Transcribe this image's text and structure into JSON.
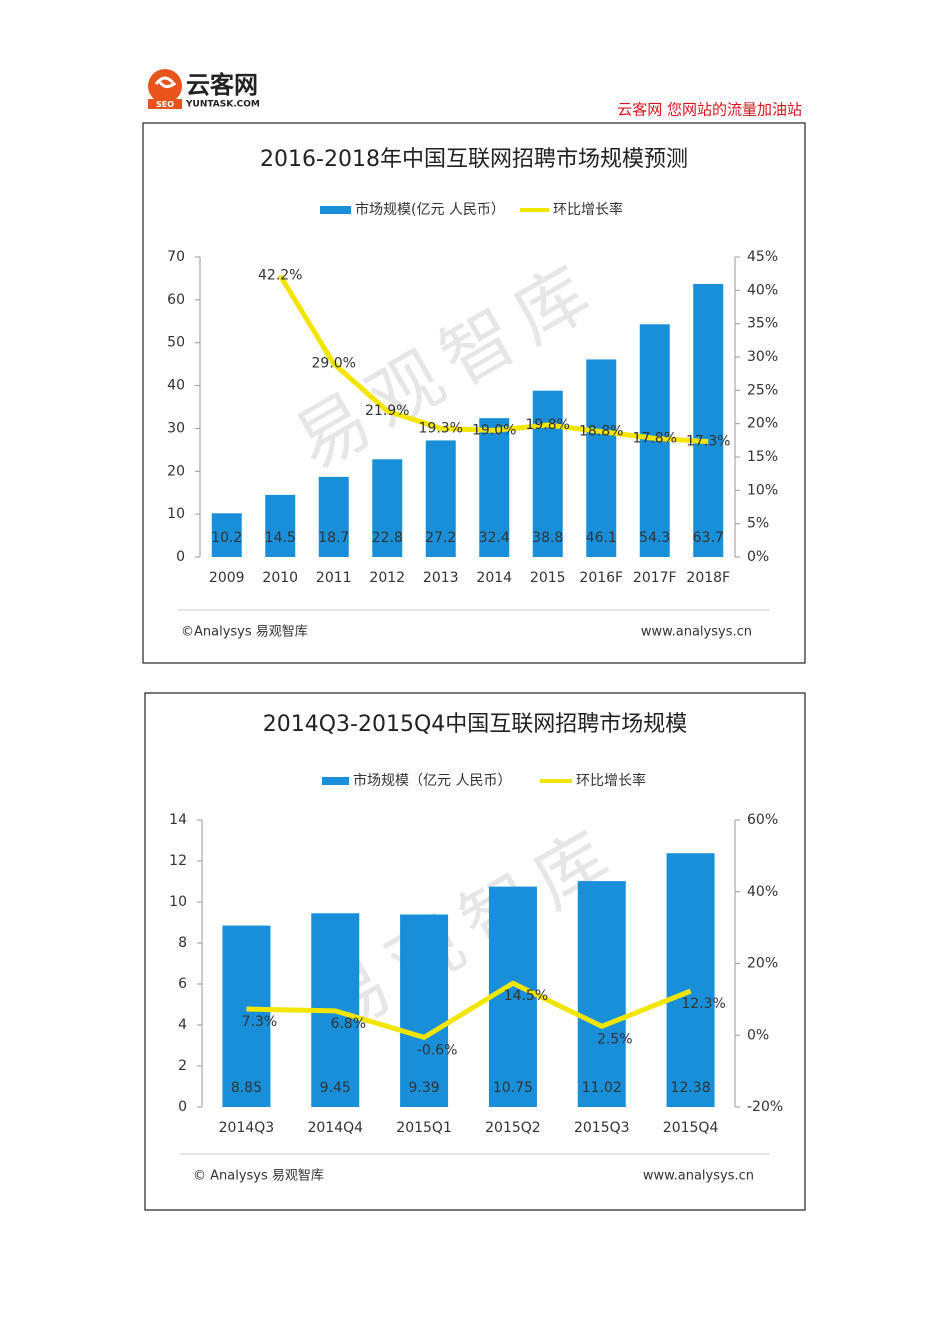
{
  "header": {
    "logo_name": "云客网",
    "logo_badge": "SEO",
    "logo_domain": "YUNTASK.COM",
    "slogan": "云客网  您网站的流量加油站"
  },
  "chart_data": [
    {
      "type": "bar",
      "title": "2016-2018年中国互联网招聘市场规模预测",
      "categories": [
        "2009",
        "2010",
        "2011",
        "2012",
        "2013",
        "2014",
        "2015",
        "2016F",
        "2017F",
        "2018F"
      ],
      "series": [
        {
          "name": "市场规模(亿元 人民币）",
          "type": "bar",
          "color": "#1a8fd9",
          "values": [
            10.2,
            14.5,
            18.7,
            22.8,
            27.2,
            32.4,
            38.8,
            46.1,
            54.3,
            63.7
          ]
        },
        {
          "name": "环比增长率",
          "type": "line",
          "axis": "y2",
          "color": "#f2e500",
          "values": [
            null,
            42.2,
            29.0,
            21.9,
            19.3,
            19.0,
            19.8,
            18.8,
            17.8,
            17.3
          ],
          "value_labels": [
            null,
            "42.2%",
            "29.0%",
            "21.9%",
            "19.3%",
            "19.0%",
            "19.8%",
            "18.8%",
            "17.8%",
            "17.3%"
          ]
        }
      ],
      "ylim": [
        0,
        70
      ],
      "yticks": [
        0,
        10,
        20,
        30,
        40,
        50,
        60,
        70
      ],
      "y2lim": [
        0,
        45
      ],
      "y2ticks": [
        {
          "value": 0,
          "label": "0%"
        },
        {
          "value": 5,
          "label": "5%"
        },
        {
          "value": 10,
          "label": "10%"
        },
        {
          "value": 15,
          "label": "15%"
        },
        {
          "value": 20,
          "label": "20%"
        },
        {
          "value": 25,
          "label": "25%"
        },
        {
          "value": 30,
          "label": "30%"
        },
        {
          "value": 35,
          "label": "35%"
        },
        {
          "value": 40,
          "label": "40%"
        },
        {
          "value": 45,
          "label": "45%"
        }
      ],
      "watermark": "易观智库",
      "source": "©Analysys 易观智库",
      "website": "www.analysys.cn"
    },
    {
      "type": "bar",
      "title": "2014Q3-2015Q4中国互联网招聘市场规模",
      "categories": [
        "2014Q3",
        "2014Q4",
        "2015Q1",
        "2015Q2",
        "2015Q3",
        "2015Q4"
      ],
      "series": [
        {
          "name": "市场规模（亿元 人民币）",
          "type": "bar",
          "color": "#1a8fd9",
          "values": [
            8.85,
            9.45,
            9.39,
            10.75,
            11.02,
            12.38
          ]
        },
        {
          "name": "环比增长率",
          "type": "line",
          "axis": "y2",
          "color": "#f2e500",
          "values": [
            7.3,
            6.8,
            -0.6,
            14.5,
            2.5,
            12.3
          ],
          "value_labels": [
            "7.3%",
            "6.8%",
            "-0.6%",
            "14.5%",
            "2.5%",
            "12.3%"
          ]
        }
      ],
      "ylim": [
        0,
        14
      ],
      "yticks": [
        0,
        2,
        4,
        6,
        8,
        10,
        12,
        14
      ],
      "y2lim": [
        -20,
        60
      ],
      "y2ticks": [
        {
          "value": -20,
          "label": "-20%"
        },
        {
          "value": 0,
          "label": "0%"
        },
        {
          "value": 20,
          "label": "20%"
        },
        {
          "value": 40,
          "label": "40%"
        },
        {
          "value": 60,
          "label": "60%"
        }
      ],
      "watermark": "易观智库",
      "source": "© Analysys 易观智库",
      "website": "www.analysys.cn"
    }
  ]
}
